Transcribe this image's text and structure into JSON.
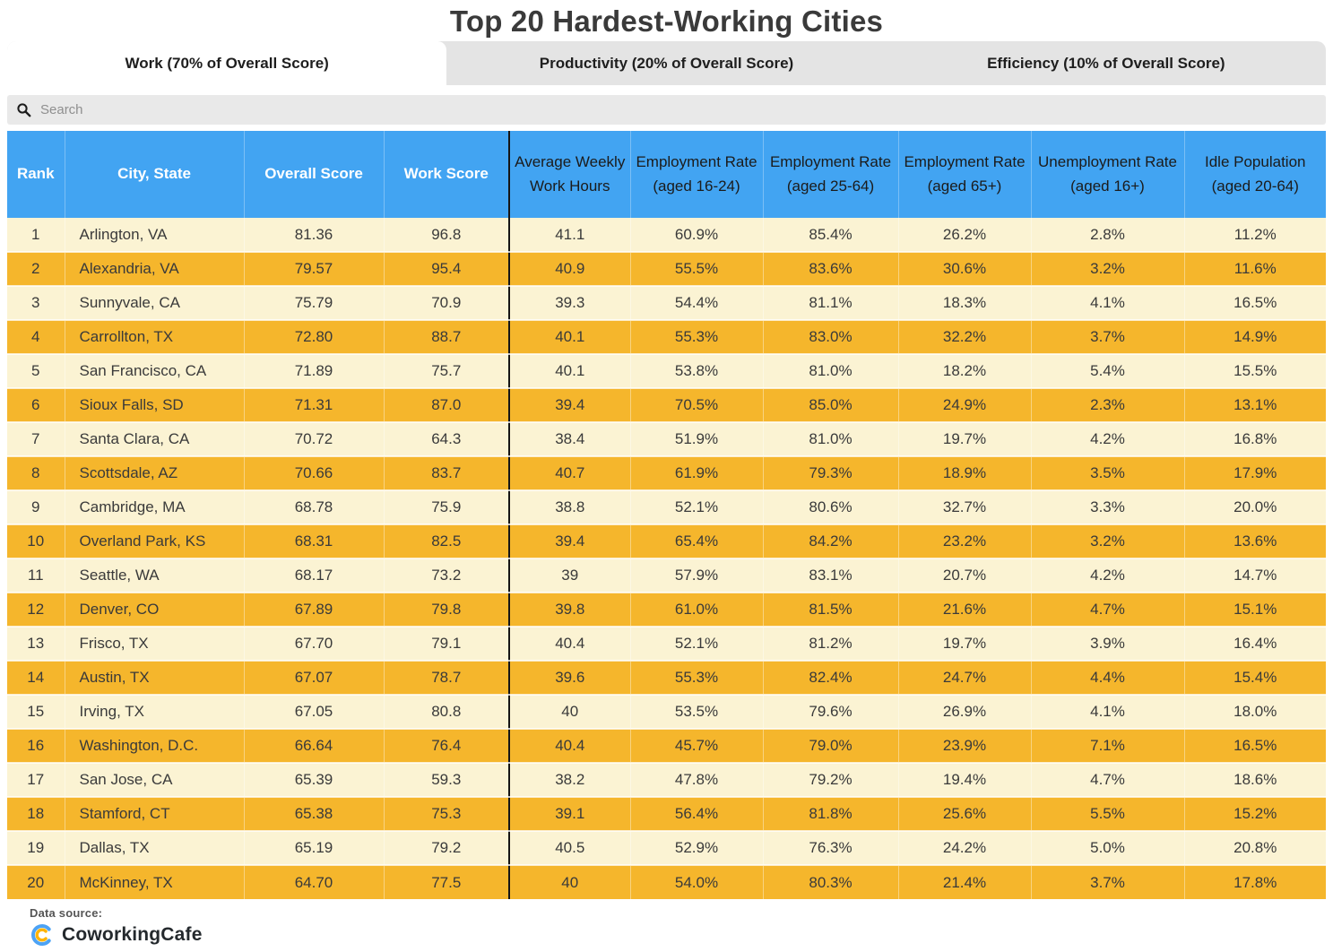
{
  "title": "Top 20 Hardest-Working Cities",
  "tabs": [
    {
      "label": "Work (70% of Overall Score)",
      "active": true
    },
    {
      "label": "Productivity (20% of Overall Score)",
      "active": false
    },
    {
      "label": "Efficiency (10% of Overall Score)",
      "active": false
    }
  ],
  "search": {
    "placeholder": "Search",
    "icon": "search-icon"
  },
  "chart_data": {
    "type": "table",
    "title": "Top 20 Hardest-Working Cities",
    "columns": [
      "Rank",
      "City, State",
      "Overall Score",
      "Work Score",
      "Average Weekly Work Hours",
      "Employment Rate (aged 16-24)",
      "Employment Rate (aged 25-64)",
      "Employment Rate (aged 65+)",
      "Unemployment Rate (aged 16+)",
      "Idle Population (aged 20-64)"
    ],
    "rows": [
      [
        "1",
        "Arlington, VA",
        "81.36",
        "96.8",
        "41.1",
        "60.9%",
        "85.4%",
        "26.2%",
        "2.8%",
        "11.2%"
      ],
      [
        "2",
        "Alexandria, VA",
        "79.57",
        "95.4",
        "40.9",
        "55.5%",
        "83.6%",
        "30.6%",
        "3.2%",
        "11.6%"
      ],
      [
        "3",
        "Sunnyvale, CA",
        "75.79",
        "70.9",
        "39.3",
        "54.4%",
        "81.1%",
        "18.3%",
        "4.1%",
        "16.5%"
      ],
      [
        "4",
        "Carrollton, TX",
        "72.80",
        "88.7",
        "40.1",
        "55.3%",
        "83.0%",
        "32.2%",
        "3.7%",
        "14.9%"
      ],
      [
        "5",
        "San Francisco, CA",
        "71.89",
        "75.7",
        "40.1",
        "53.8%",
        "81.0%",
        "18.2%",
        "5.4%",
        "15.5%"
      ],
      [
        "6",
        "Sioux Falls, SD",
        "71.31",
        "87.0",
        "39.4",
        "70.5%",
        "85.0%",
        "24.9%",
        "2.3%",
        "13.1%"
      ],
      [
        "7",
        "Santa Clara, CA",
        "70.72",
        "64.3",
        "38.4",
        "51.9%",
        "81.0%",
        "19.7%",
        "4.2%",
        "16.8%"
      ],
      [
        "8",
        "Scottsdale, AZ",
        "70.66",
        "83.7",
        "40.7",
        "61.9%",
        "79.3%",
        "18.9%",
        "3.5%",
        "17.9%"
      ],
      [
        "9",
        "Cambridge, MA",
        "68.78",
        "75.9",
        "38.8",
        "52.1%",
        "80.6%",
        "32.7%",
        "3.3%",
        "20.0%"
      ],
      [
        "10",
        "Overland Park, KS",
        "68.31",
        "82.5",
        "39.4",
        "65.4%",
        "84.2%",
        "23.2%",
        "3.2%",
        "13.6%"
      ],
      [
        "11",
        "Seattle, WA",
        "68.17",
        "73.2",
        "39",
        "57.9%",
        "83.1%",
        "20.7%",
        "4.2%",
        "14.7%"
      ],
      [
        "12",
        "Denver, CO",
        "67.89",
        "79.8",
        "39.8",
        "61.0%",
        "81.5%",
        "21.6%",
        "4.7%",
        "15.1%"
      ],
      [
        "13",
        "Frisco, TX",
        "67.70",
        "79.1",
        "40.4",
        "52.1%",
        "81.2%",
        "19.7%",
        "3.9%",
        "16.4%"
      ],
      [
        "14",
        "Austin, TX",
        "67.07",
        "78.7",
        "39.6",
        "55.3%",
        "82.4%",
        "24.7%",
        "4.4%",
        "15.4%"
      ],
      [
        "15",
        "Irving, TX",
        "67.05",
        "80.8",
        "40",
        "53.5%",
        "79.6%",
        "26.9%",
        "4.1%",
        "18.0%"
      ],
      [
        "16",
        "Washington, D.C.",
        "66.64",
        "76.4",
        "40.4",
        "45.7%",
        "79.0%",
        "23.9%",
        "7.1%",
        "16.5%"
      ],
      [
        "17",
        "San Jose, CA",
        "65.39",
        "59.3",
        "38.2",
        "47.8%",
        "79.2%",
        "19.4%",
        "4.7%",
        "18.6%"
      ],
      [
        "18",
        "Stamford, CT",
        "65.38",
        "75.3",
        "39.1",
        "56.4%",
        "81.8%",
        "25.6%",
        "5.5%",
        "15.2%"
      ],
      [
        "19",
        "Dallas, TX",
        "65.19",
        "79.2",
        "40.5",
        "52.9%",
        "76.3%",
        "24.2%",
        "5.0%",
        "20.8%"
      ],
      [
        "20",
        "McKinney, TX",
        "64.70",
        "77.5",
        "40",
        "54.0%",
        "80.3%",
        "21.4%",
        "3.7%",
        "17.8%"
      ]
    ]
  },
  "footer": {
    "data_source_label": "Data source:",
    "brand": "CoworkingCafe"
  },
  "colors": {
    "header_blue": "#42a4f2",
    "row_cream": "#fbf3d3",
    "row_amber": "#f5b62c",
    "tab_gray": "#e4e4e4",
    "search_gray": "#e9e9e9",
    "divider_black": "#151515",
    "logo_blue": "#4da3f5",
    "logo_yellow": "#ffb400"
  }
}
